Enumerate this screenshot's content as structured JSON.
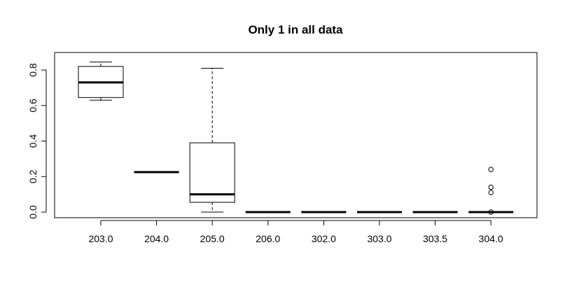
{
  "chart_data": {
    "type": "boxplot",
    "title": "Only 1 in all data",
    "xlabel": "",
    "ylabel": "",
    "ylim": [
      -0.02,
      0.86
    ],
    "y_ticks": [
      "0.0",
      "0.2",
      "0.4",
      "0.6",
      "0.8"
    ],
    "y_tick_values": [
      0.0,
      0.2,
      0.4,
      0.6,
      0.8
    ],
    "categories": [
      "203.0",
      "204.0",
      "205.0",
      "206.0",
      "302.0",
      "303.0",
      "303.5",
      "304.0"
    ],
    "boxes": [
      {
        "category": "203.0",
        "min": 0.63,
        "q1": 0.645,
        "median": 0.73,
        "q3": 0.82,
        "max": 0.845,
        "outliers": []
      },
      {
        "category": "204.0",
        "min": 0.225,
        "q1": 0.225,
        "median": 0.225,
        "q3": 0.225,
        "max": 0.225,
        "outliers": []
      },
      {
        "category": "205.0",
        "min": 0.0,
        "q1": 0.055,
        "median": 0.1,
        "q3": 0.39,
        "max": 0.81,
        "outliers": []
      },
      {
        "category": "206.0",
        "min": 0.0,
        "q1": 0.0,
        "median": 0.0,
        "q3": 0.0,
        "max": 0.0,
        "outliers": []
      },
      {
        "category": "302.0",
        "min": 0.0,
        "q1": 0.0,
        "median": 0.0,
        "q3": 0.0,
        "max": 0.0,
        "outliers": []
      },
      {
        "category": "303.0",
        "min": 0.0,
        "q1": 0.0,
        "median": 0.0,
        "q3": 0.0,
        "max": 0.0,
        "outliers": []
      },
      {
        "category": "303.5",
        "min": 0.0,
        "q1": 0.0,
        "median": 0.0,
        "q3": 0.0,
        "max": 0.0,
        "outliers": []
      },
      {
        "category": "304.0",
        "min": 0.0,
        "q1": 0.0,
        "median": 0.0,
        "q3": 0.0,
        "max": 0.0,
        "outliers": [
          0.0,
          0.11,
          0.14,
          0.24
        ]
      }
    ]
  }
}
